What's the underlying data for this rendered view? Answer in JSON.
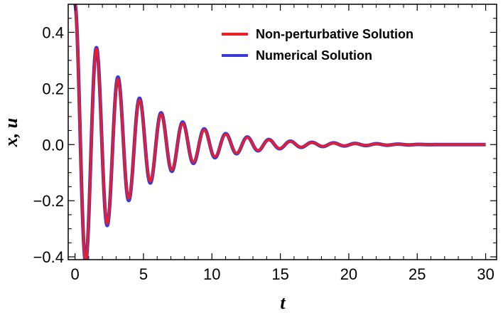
{
  "chart_data": {
    "type": "line",
    "xlabel": "t",
    "ylabel": "x, u",
    "xlim": [
      -0.5,
      30.8
    ],
    "ylim": [
      -0.41,
      0.5
    ],
    "x_ticks": [
      "0",
      "5",
      "10",
      "15",
      "20",
      "25",
      "30"
    ],
    "y_ticks": [
      "0.4",
      "0.2",
      "0.0",
      "−0.2",
      "−0.4"
    ],
    "legend_position": "top-right",
    "grid": false,
    "series": [
      {
        "name": "Numerical Solution",
        "color": "#3a3ad8",
        "x": [
          0,
          1.575,
          3.15,
          4.725,
          6.3,
          7.875,
          9.45,
          11.025,
          12.6,
          14.175,
          15.75,
          17.325,
          18.9,
          20.475,
          22.05,
          25,
          30
        ],
        "y": [
          0.5,
          0.345,
          0.24,
          0.165,
          0.113,
          0.08,
          0.056,
          0.039,
          0.027,
          0.018,
          0.012,
          0.008,
          0.006,
          0.004,
          0.003,
          0.001,
          0.0
        ]
      },
      {
        "name": "Non-perturbative Solution",
        "color": "#ee1c25",
        "x": [
          0,
          1.575,
          3.15,
          4.725,
          6.3,
          7.875,
          9.45,
          11.025,
          12.6,
          14.175,
          15.75,
          17.325,
          18.9,
          20.475,
          22.05,
          25,
          30
        ],
        "y": [
          0.5,
          0.34,
          0.232,
          0.158,
          0.108,
          0.075,
          0.052,
          0.036,
          0.025,
          0.017,
          0.011,
          0.007,
          0.005,
          0.003,
          0.002,
          0.001,
          0.0
        ]
      }
    ]
  }
}
